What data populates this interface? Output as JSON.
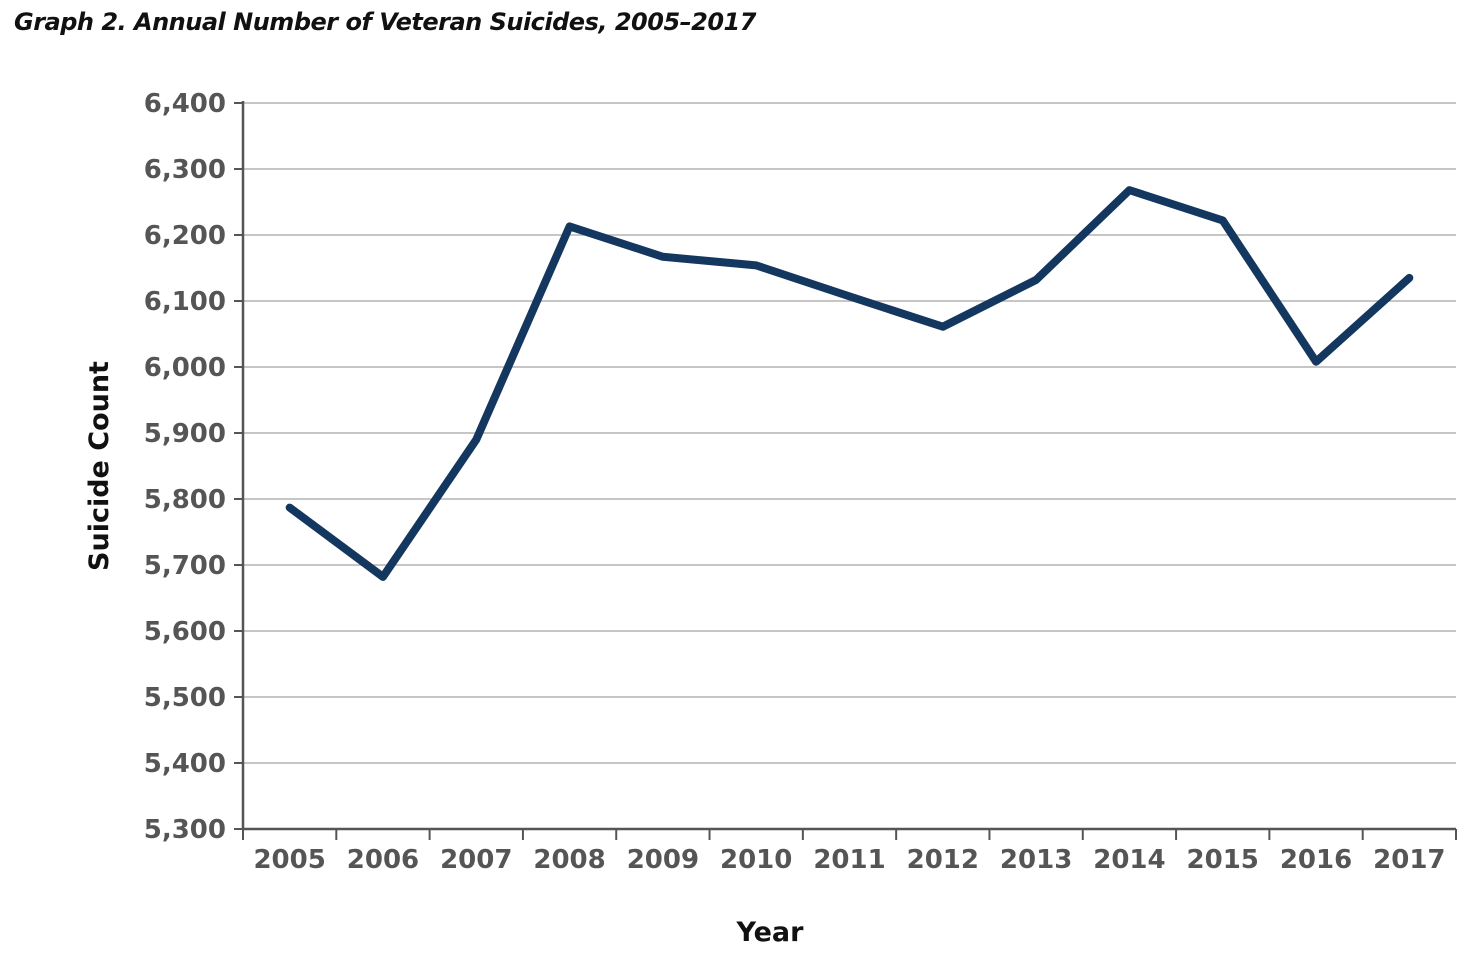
{
  "chart_data": {
    "type": "line",
    "title": "Graph 2. Annual Number of Veteran Suicides, 2005–2017",
    "xlabel": "Year",
    "ylabel": "Suicide Count",
    "categories": [
      "2005",
      "2006",
      "2007",
      "2008",
      "2009",
      "2010",
      "2011",
      "2012",
      "2013",
      "2014",
      "2015",
      "2016",
      "2017"
    ],
    "series": [
      {
        "values": [
          5787,
          5682,
          5890,
          6213,
          6167,
          6154,
          6107,
          6061,
          6132,
          6268,
          6222,
          6008,
          6135
        ]
      }
    ],
    "ylim": [
      5300,
      6400
    ],
    "yticks": [
      5300,
      5400,
      5500,
      5600,
      5700,
      5800,
      5900,
      6000,
      6100,
      6200,
      6300,
      6400
    ],
    "ytick_labels": [
      "5,300",
      "5,400",
      "5,500",
      "5,600",
      "5,700",
      "5,800",
      "5,900",
      "6,000",
      "6,100",
      "6,200",
      "6,300",
      "6,400"
    ],
    "grid": true,
    "legend": "none",
    "line_color": "#13375f",
    "grid_color": "#b3b3b3",
    "axis_color": "#555555"
  }
}
